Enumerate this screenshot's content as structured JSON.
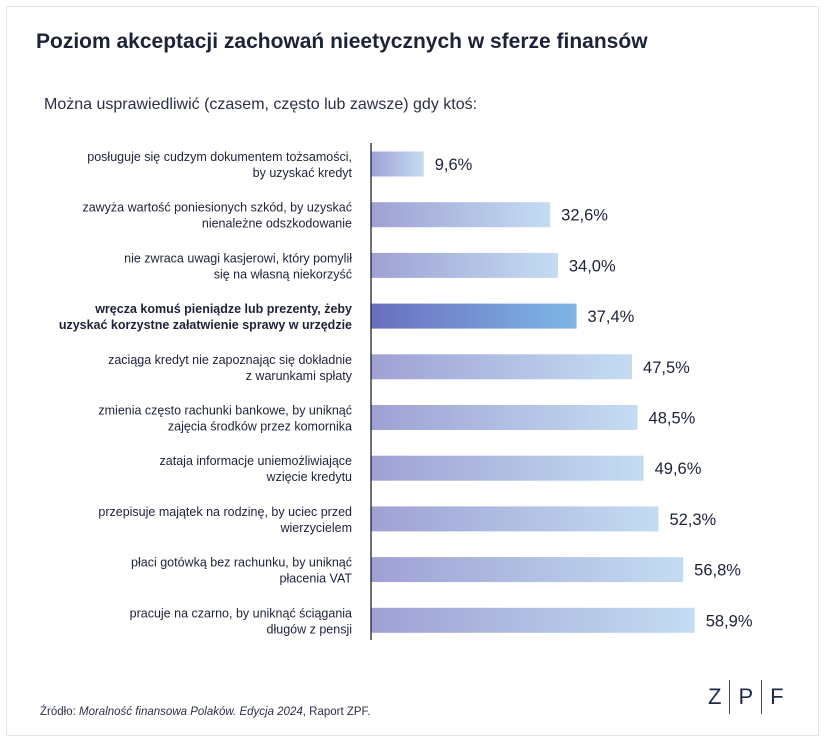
{
  "header": {
    "title": "Poziom akceptacji zachowań nieetycznych w sferze finansów",
    "subtitle": "Można usprawiedliwić (czasem, często lub zawsze) gdy ktoś:"
  },
  "footer": {
    "source_prefix": "Źródło: ",
    "source_title": "Moralność finansowa Polaków. Edycja 2024",
    "source_suffix": ", Raport ZPF.",
    "logo_letters": [
      "Z",
      "P",
      "F"
    ]
  },
  "colors": {
    "bar_gradient_start": "#9ea1d4",
    "bar_gradient_end": "#c4dcf2",
    "highlight_gradient_start": "#6a6fc0",
    "highlight_gradient_end": "#7eb6e6",
    "axis": "#1d2236",
    "text": "#1d2236"
  },
  "chart_data": {
    "type": "bar",
    "orientation": "horizontal",
    "categories": [
      [
        "posługuje się cudzym dokumentem tożsamości,",
        "by uzyskać kredyt"
      ],
      [
        "zawyża wartość poniesionych szkód, by uzyskać",
        "nienależne odszkodowanie"
      ],
      [
        "nie zwraca uwagi kasjerowi, który pomylił",
        "się na własną niekorzyść"
      ],
      [
        "wręcza komuś pieniądze lub prezenty, żeby",
        "uzyskać korzystne załatwienie sprawy w urzędzie"
      ],
      [
        "zaciąga kredyt nie zapoznając się dokładnie",
        "z warunkami spłaty"
      ],
      [
        "zmienia często rachunki bankowe, by uniknąć",
        "zajęcia środków przez komornika"
      ],
      [
        "zataja informacje uniemożliwiające",
        "wzięcie kredytu"
      ],
      [
        "przepisuje majątek na rodzinę, by uciec przed",
        "wierzycielem"
      ],
      [
        "płaci gotówką bez rachunku, by uniknąć",
        "płacenia VAT"
      ],
      [
        "pracuje na czarno, by uniknąć ściągania",
        "długów z pensji"
      ]
    ],
    "values": [
      9.6,
      32.6,
      34.0,
      37.4,
      47.5,
      48.5,
      49.6,
      52.3,
      56.8,
      58.9
    ],
    "value_labels": [
      "9,6%",
      "32,6%",
      "34,0%",
      "37,4%",
      "47,5%",
      "48,5%",
      "49,6%",
      "52,3%",
      "56,8%",
      "58,9%"
    ],
    "highlight_index": 3,
    "xlim": [
      0,
      100
    ],
    "unit": "%",
    "grid": false,
    "legend": "none"
  }
}
